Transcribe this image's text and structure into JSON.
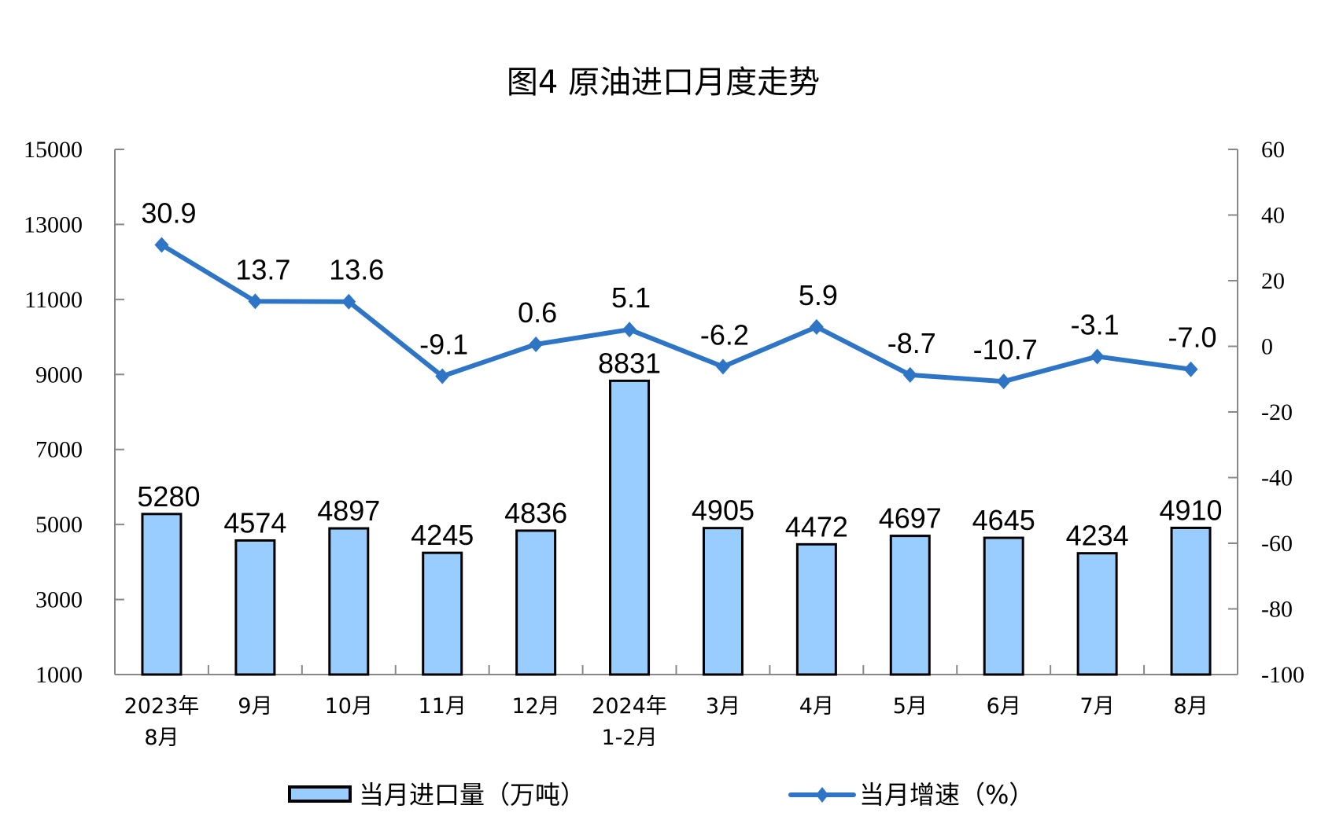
{
  "chart_data": {
    "type": "bar+line",
    "title": "图4  原油进口月度走势",
    "categories": [
      [
        "2023年",
        "8月"
      ],
      [
        "9月"
      ],
      [
        "10月"
      ],
      [
        "11月"
      ],
      [
        "12月"
      ],
      [
        "2024年",
        "1-2月"
      ],
      [
        "3月"
      ],
      [
        "4月"
      ],
      [
        "5月"
      ],
      [
        "6月"
      ],
      [
        "7月"
      ],
      [
        "8月"
      ]
    ],
    "series": [
      {
        "name": "当月进口量（万吨）",
        "type": "bar",
        "axis": "left",
        "values": [
          5280,
          4574,
          4897,
          4245,
          4836,
          8831,
          4905,
          4472,
          4697,
          4645,
          4234,
          4910
        ],
        "labels": [
          "5280",
          "4574",
          "4897",
          "4245",
          "4836",
          "8831",
          "4905",
          "4472",
          "4697",
          "4645",
          "4234",
          "4910"
        ],
        "color": "#99CCFF"
      },
      {
        "name": "当月增速（%）",
        "type": "line",
        "axis": "right",
        "values": [
          30.9,
          13.7,
          13.6,
          -9.1,
          0.6,
          5.1,
          -6.2,
          5.9,
          -8.7,
          -10.7,
          -3.1,
          -7.0
        ],
        "labels": [
          "30.9",
          "13.7",
          "13.6",
          "-9.1",
          "0.6",
          "5.1",
          "-6.2",
          "5.9",
          "-8.7",
          "-10.7",
          "-3.1",
          "-7.0"
        ],
        "color": "#2E75C6"
      }
    ],
    "y_left": {
      "range": [
        1000,
        15000
      ],
      "ticks": [
        "1000",
        "3000",
        "5000",
        "7000",
        "9000",
        "11000",
        "13000",
        "15000"
      ]
    },
    "y_right": {
      "range": [
        -100,
        60
      ],
      "ticks": [
        "-100",
        "-80",
        "-60",
        "-40",
        "-20",
        "0",
        "20",
        "40",
        "60"
      ]
    },
    "grid": false,
    "legend_position": "bottom"
  }
}
